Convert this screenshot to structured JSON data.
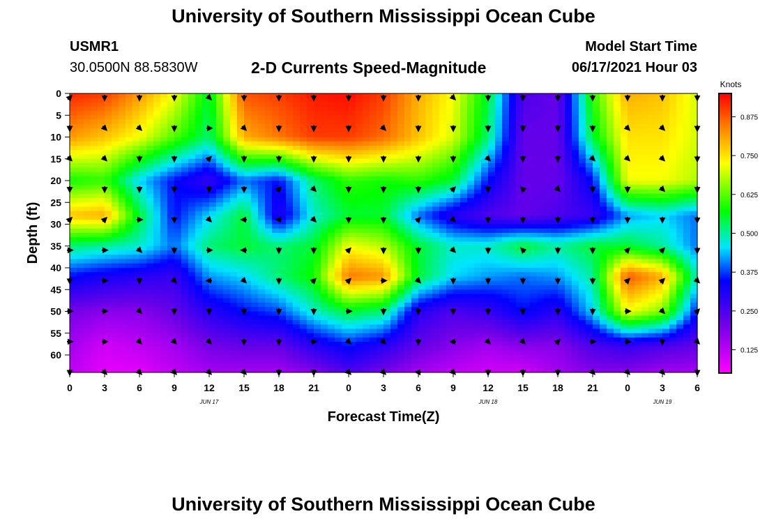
{
  "header": {
    "title": "University of Southern Mississippi Ocean Cube",
    "station": "USMR1",
    "coordinates": "30.0500N  88.5830W",
    "subtitle": "2-D Currents Speed-Magnitude",
    "model_start_label": "Model Start Time",
    "model_start_value": "06/17/2021 Hour 03"
  },
  "footer": {
    "title": "University of Southern Mississippi Ocean Cube"
  },
  "chart_data": {
    "type": "heatmap",
    "title": "2-D Currents Speed-Magnitude",
    "xlabel": "Forecast Time(Z)",
    "ylabel": "Depth (ft)",
    "x_tick_labels": [
      "0",
      "3",
      "6",
      "9",
      "12",
      "15",
      "18",
      "21",
      "0",
      "3",
      "6",
      "9",
      "12",
      "15",
      "18",
      "21",
      "0",
      "3",
      "6"
    ],
    "date_labels": [
      {
        "label": "JUN 17",
        "at_index": 4
      },
      {
        "label": "JUN 18",
        "at_index": 12
      },
      {
        "label": "JUN 19",
        "at_index": 17
      }
    ],
    "y_ticks": [
      0,
      5,
      10,
      15,
      20,
      25,
      30,
      35,
      40,
      45,
      50,
      55,
      60
    ],
    "ylim": [
      0,
      64
    ],
    "colorbar": {
      "label": "Knots",
      "ticks": [
        0.125,
        0.25,
        0.375,
        0.5,
        0.625,
        0.75,
        0.875
      ],
      "tick_labels": [
        "0.125",
        "0.250",
        "0.375",
        "0.500",
        "0.625",
        "0.750",
        "0.875"
      ],
      "range": [
        0.05,
        0.95
      ]
    },
    "grid_depths": [
      0,
      10,
      20,
      28,
      35,
      42,
      50,
      58,
      64
    ],
    "grid_speeds": [
      [
        0.92,
        0.9,
        0.82,
        0.72,
        0.55,
        0.88,
        0.9,
        0.93,
        0.94,
        0.9,
        0.8,
        0.72,
        0.55,
        0.25,
        0.22,
        0.6,
        0.8,
        0.78,
        0.7
      ],
      [
        0.82,
        0.78,
        0.72,
        0.62,
        0.52,
        0.8,
        0.85,
        0.9,
        0.9,
        0.86,
        0.78,
        0.7,
        0.52,
        0.22,
        0.22,
        0.55,
        0.75,
        0.75,
        0.7
      ],
      [
        0.58,
        0.6,
        0.45,
        0.35,
        0.28,
        0.4,
        0.35,
        0.52,
        0.6,
        0.58,
        0.6,
        0.55,
        0.35,
        0.22,
        0.22,
        0.35,
        0.72,
        0.72,
        0.68
      ],
      [
        0.78,
        0.8,
        0.55,
        0.35,
        0.45,
        0.55,
        0.3,
        0.48,
        0.55,
        0.55,
        0.4,
        0.3,
        0.25,
        0.22,
        0.25,
        0.28,
        0.42,
        0.45,
        0.4
      ],
      [
        0.52,
        0.5,
        0.48,
        0.4,
        0.52,
        0.55,
        0.52,
        0.55,
        0.72,
        0.68,
        0.55,
        0.48,
        0.48,
        0.55,
        0.5,
        0.55,
        0.55,
        0.5,
        0.4
      ],
      [
        0.35,
        0.32,
        0.3,
        0.28,
        0.42,
        0.45,
        0.52,
        0.58,
        0.85,
        0.82,
        0.55,
        0.45,
        0.42,
        0.4,
        0.42,
        0.5,
        0.88,
        0.8,
        0.48
      ],
      [
        0.2,
        0.18,
        0.18,
        0.22,
        0.3,
        0.35,
        0.38,
        0.48,
        0.55,
        0.52,
        0.3,
        0.25,
        0.28,
        0.35,
        0.3,
        0.45,
        0.72,
        0.65,
        0.35
      ],
      [
        0.15,
        0.1,
        0.12,
        0.15,
        0.2,
        0.22,
        0.22,
        0.3,
        0.35,
        0.3,
        0.22,
        0.18,
        0.15,
        0.18,
        0.18,
        0.25,
        0.28,
        0.25,
        0.22
      ],
      [
        0.12,
        0.08,
        0.08,
        0.12,
        0.15,
        0.15,
        0.15,
        0.18,
        0.25,
        0.2,
        0.15,
        0.12,
        0.1,
        0.1,
        0.15,
        0.18,
        0.18,
        0.15,
        0.15
      ]
    ],
    "vector_depths": [
      0,
      7,
      14,
      21,
      28,
      35,
      42,
      49,
      56,
      63
    ],
    "vector_dirs_deg": [
      [
        135,
        0,
        0,
        0,
        45,
        0,
        0,
        0,
        0,
        0,
        0,
        45,
        0,
        0,
        0,
        0,
        0,
        0,
        0
      ],
      [
        0,
        45,
        45,
        0,
        90,
        45,
        0,
        0,
        0,
        45,
        0,
        0,
        0,
        0,
        0,
        0,
        45,
        45,
        0
      ],
      [
        45,
        45,
        0,
        0,
        135,
        0,
        0,
        0,
        0,
        0,
        0,
        0,
        45,
        0,
        0,
        45,
        45,
        45,
        0
      ],
      [
        0,
        0,
        0,
        0,
        0,
        0,
        135,
        45,
        0,
        0,
        0,
        135,
        0,
        225,
        45,
        0,
        0,
        45,
        0
      ],
      [
        135,
        135,
        90,
        0,
        45,
        270,
        270,
        45,
        0,
        0,
        135,
        45,
        0,
        0,
        0,
        0,
        0,
        0,
        0
      ],
      [
        90,
        90,
        45,
        0,
        90,
        270,
        0,
        0,
        135,
        0,
        0,
        45,
        0,
        225,
        0,
        0,
        135,
        135,
        0
      ],
      [
        0,
        90,
        0,
        45,
        270,
        45,
        0,
        135,
        135,
        90,
        45,
        0,
        0,
        0,
        0,
        0,
        135,
        135,
        45
      ],
      [
        90,
        90,
        45,
        0,
        0,
        0,
        0,
        0,
        90,
        0,
        0,
        0,
        0,
        0,
        0,
        0,
        90,
        45,
        135
      ],
      [
        90,
        90,
        45,
        45,
        45,
        0,
        0,
        90,
        45,
        45,
        0,
        270,
        45,
        45,
        135,
        90,
        90,
        0,
        45
      ],
      [
        0,
        45,
        45,
        45,
        45,
        45,
        0,
        0,
        45,
        45,
        270,
        45,
        0,
        0,
        0,
        45,
        45,
        45,
        0
      ]
    ]
  }
}
